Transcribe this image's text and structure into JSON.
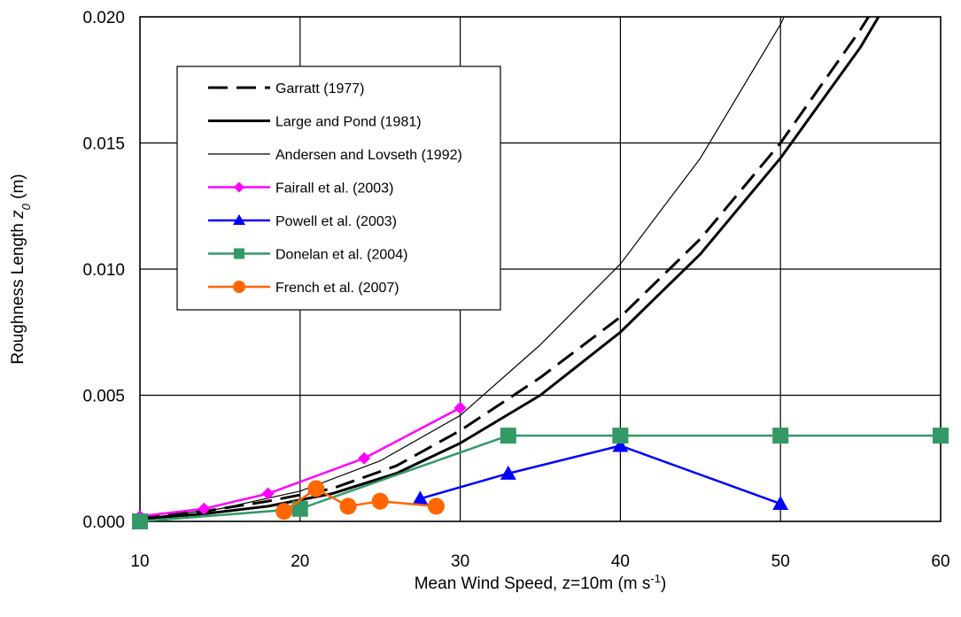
{
  "chart_data": {
    "type": "line",
    "xlabel": "Mean Wind Speed, z=10m  (m s",
    "xlabel_sup": "-1",
    "xlabel_end": ")",
    "ylabel": "Roughness Length  ",
    "ylabel_var": "z",
    "ylabel_sub": "0",
    "ylabel_unit": "  (m)",
    "xlim": [
      10,
      60
    ],
    "ylim": [
      0,
      0.02
    ],
    "x_ticks": [
      "10",
      "20",
      "30",
      "40",
      "50",
      "60"
    ],
    "y_ticks": [
      "0.000",
      "0.005",
      "0.010",
      "0.015",
      "0.020"
    ],
    "grid": true,
    "legend_position": "top-left",
    "series": [
      {
        "name": "Garratt (1977)",
        "color": "#000000",
        "style": "dashed",
        "marker": "none",
        "x": [
          10,
          14,
          18,
          22,
          26,
          30,
          35,
          40,
          45,
          50,
          55,
          56
        ],
        "y": [
          0.0002,
          0.0004,
          0.0008,
          0.0013,
          0.0022,
          0.0036,
          0.0057,
          0.0081,
          0.0112,
          0.015,
          0.0195,
          0.0205
        ]
      },
      {
        "name": "Large and Pond (1981)",
        "color": "#000000",
        "style": "thick",
        "marker": "none",
        "x": [
          10,
          14,
          18,
          22,
          26,
          30,
          35,
          40,
          45,
          50,
          55,
          56.5
        ],
        "y": [
          0.0001,
          0.0003,
          0.0006,
          0.0011,
          0.0019,
          0.0031,
          0.005,
          0.0075,
          0.0106,
          0.0144,
          0.0188,
          0.0204
        ]
      },
      {
        "name": "Andersen and Lovseth (1992)",
        "color": "#000000",
        "style": "thin",
        "marker": "none",
        "x": [
          10,
          15,
          20,
          25,
          30,
          35,
          40,
          45,
          50,
          50.6
        ],
        "y": [
          0.0001,
          0.0005,
          0.0012,
          0.0024,
          0.0042,
          0.007,
          0.0102,
          0.0144,
          0.0197,
          0.0205
        ]
      },
      {
        "name": "Fairall et al. (2003)",
        "color": "#ff00ff",
        "style": "solid",
        "marker": "diamond",
        "x": [
          10,
          14,
          18,
          24,
          30
        ],
        "y": [
          0.0002,
          0.0005,
          0.0011,
          0.0025,
          0.0045
        ]
      },
      {
        "name": "Powell et al. (2003)",
        "color": "#0000ff",
        "style": "solid",
        "marker": "triangle",
        "x": [
          27.5,
          33,
          40,
          50
        ],
        "y": [
          0.0009,
          0.0019,
          0.003,
          0.0007
        ]
      },
      {
        "name": "Donelan et al. (2004)",
        "color": "#339966",
        "style": "solid",
        "marker": "square",
        "x": [
          10,
          20,
          33,
          40,
          50,
          60
        ],
        "y": [
          0.0,
          0.0005,
          0.0034,
          0.0034,
          0.0034,
          0.0034
        ]
      },
      {
        "name": "French et al. (2007)",
        "color": "#ff6600",
        "style": "solid",
        "marker": "circle",
        "x": [
          19,
          21,
          23,
          25,
          28.5
        ],
        "y": [
          0.0004,
          0.0013,
          0.0006,
          0.0008,
          0.0006
        ]
      }
    ]
  }
}
